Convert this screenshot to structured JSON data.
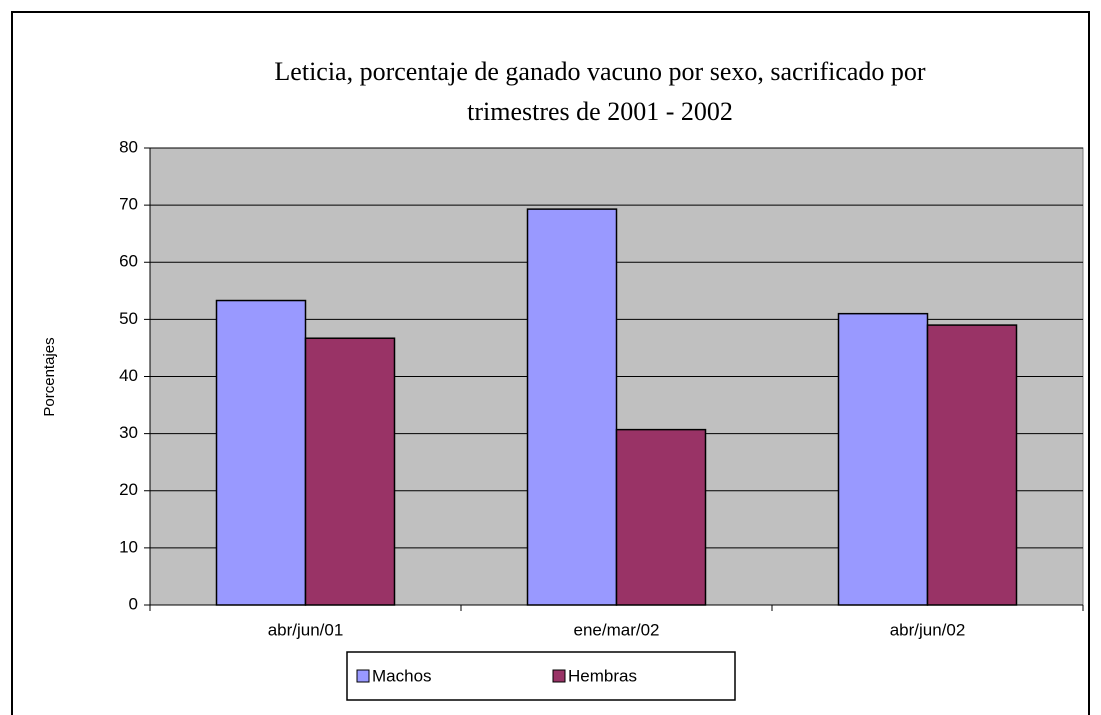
{
  "chart_data": {
    "type": "bar",
    "title": "Leticia, porcentaje de ganado vacuno por sexo, sacrificado por trimestres de 2001 - 2002",
    "y_label": "Porcentajes",
    "categories": [
      "abr/jun/01",
      "ene/mar/02",
      "abr/jun/02"
    ],
    "series": [
      {
        "name": "Machos",
        "color": "#9999ff",
        "values": [
          53.3,
          69.3,
          51.0
        ]
      },
      {
        "name": "Hembras",
        "color": "#993366",
        "values": [
          46.7,
          30.7,
          49.0
        ]
      }
    ],
    "ylim": [
      0,
      80
    ],
    "yticks": [
      0,
      10,
      20,
      30,
      40,
      50,
      60,
      70,
      80
    ],
    "grid": true,
    "legend": "bottom"
  }
}
